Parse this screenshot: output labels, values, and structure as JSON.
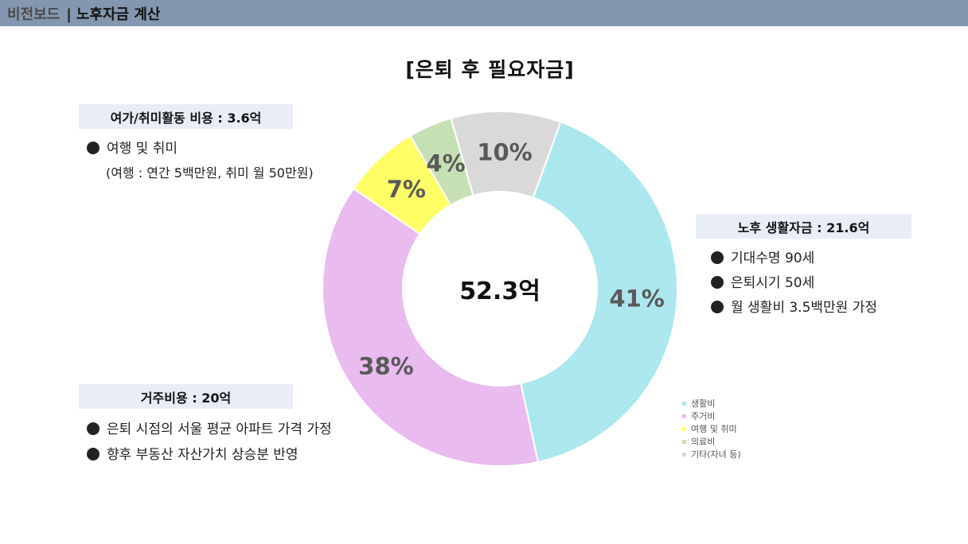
{
  "header": {
    "parent": "비전보드",
    "separator": "|",
    "current": "노후자금 계산"
  },
  "sections": {
    "leisure": {
      "title": "여가/취미활동 비용 : 3.6억",
      "bullet": "여행 및 취미",
      "note": "(여행 : 연간 5백만원, 취미 월 50만원)"
    },
    "living": {
      "title": "노후 생활자금 : 21.6억",
      "bullets": [
        "기대수명 90세",
        "은퇴시기 50세",
        "월 생활비 3.5백만원 가정"
      ]
    },
    "housing": {
      "title": "거주비용 : 20억",
      "bullets": [
        "은퇴 시점의 서울 평균 아파트 가격 가정",
        "향후 부동산 자산가치 상승분 반영"
      ]
    }
  },
  "chart_data": {
    "type": "pie",
    "title": "[은퇴 후 필요자금]",
    "center_label": "52.3억",
    "legend_position": "bottom-right",
    "series": [
      {
        "name": "생활비",
        "value": 41,
        "label": "41%",
        "color": "#ace7ee"
      },
      {
        "name": "주거비",
        "value": 38,
        "label": "38%",
        "color": "#e9bbef"
      },
      {
        "name": "여행 및 취미",
        "value": 7,
        "label": "7%",
        "color": "#ffff66"
      },
      {
        "name": "의료비",
        "value": 4,
        "label": "4%",
        "color": "#c6e0b4"
      },
      {
        "name": "기타(자녀 등)",
        "value": 10,
        "label": "10%",
        "color": "#d9d9d9"
      }
    ]
  }
}
